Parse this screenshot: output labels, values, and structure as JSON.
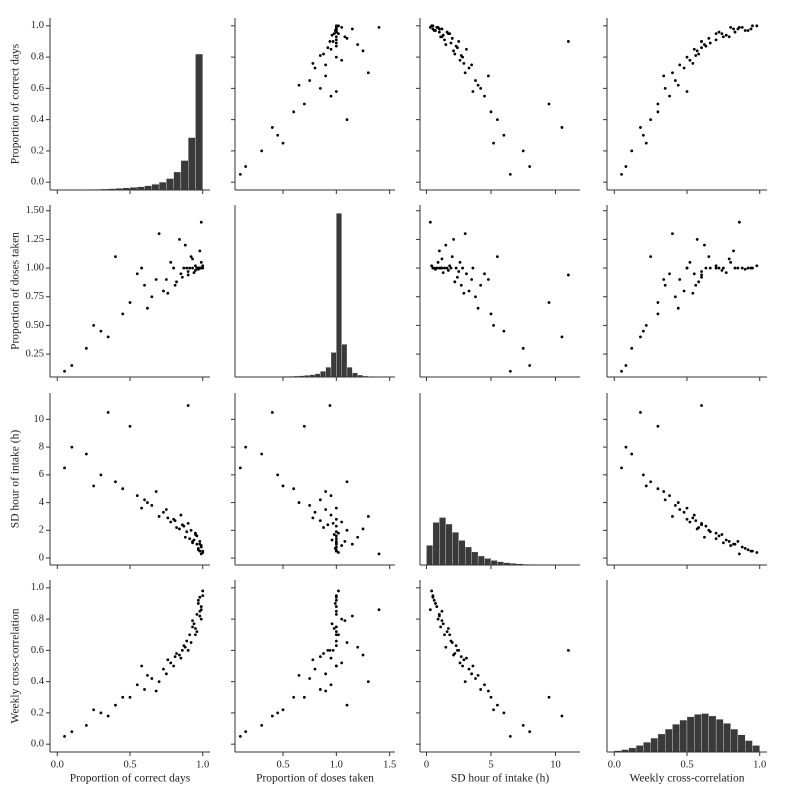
{
  "chart_data": {
    "type": "pairplot",
    "color": "#000000",
    "hist_color": "#3a3a3a",
    "hist_ylim": [
      0,
      1050
    ],
    "variables": [
      {
        "label": "Proportion of correct days",
        "lim": [
          -0.05,
          1.05
        ],
        "xticks": [
          {
            "value": 0,
            "label": "0.0"
          },
          {
            "value": 0.5,
            "label": "0.5"
          },
          {
            "value": 1,
            "label": "1.0"
          }
        ],
        "yticks": [
          {
            "value": 0,
            "label": "0.0"
          },
          0.2,
          0.4,
          0.6,
          0.8,
          {
            "value": 1,
            "label": "1.0"
          }
        ],
        "values": [
          0.98,
          0.95,
          0.9,
          1.0,
          0.85,
          0.99,
          0.92,
          0.75,
          0.6,
          0.88,
          0.97,
          0.45,
          0.8,
          0.93,
          0.3,
          0.7,
          1.0,
          0.96,
          0.55,
          0.82,
          0.2,
          0.89,
          0.65,
          0.98,
          0.4,
          0.94,
          0.78,
          0.1,
          0.99,
          0.86,
          0.5,
          0.91,
          0.73,
          0.97,
          0.35,
          0.84,
          0.95,
          0.62,
          0.99,
          0.05,
          0.87,
          0.76,
          0.93,
          0.58,
          0.98,
          0.25,
          0.81,
          0.96,
          0.68,
          0.9
        ],
        "hist": {
          "bins": [
            0,
            0.05,
            0.1,
            0.15,
            0.2,
            0.25,
            0.3,
            0.35,
            0.4,
            0.45,
            0.5,
            0.55,
            0.6,
            0.65,
            0.7,
            0.75,
            0.8,
            0.85,
            0.9,
            0.95,
            1.0
          ],
          "counts": [
            2,
            2,
            3,
            3,
            4,
            5,
            6,
            8,
            10,
            13,
            16,
            20,
            26,
            35,
            48,
            70,
            110,
            180,
            320,
            830
          ]
        }
      },
      {
        "label": "Proportion of doses taken",
        "lim": [
          0.05,
          1.55
        ],
        "xticks": [
          {
            "value": 0.5,
            "label": "0.5"
          },
          {
            "value": 1,
            "label": "1.0"
          },
          1.5
        ],
        "yticks": [
          0.25,
          {
            "value": 0.5,
            "label": "0.50"
          },
          0.75,
          {
            "value": 1,
            "label": "1.00"
          },
          1.25,
          {
            "value": 1.5,
            "label": "1.50"
          }
        ],
        "values": [
          1.0,
          1.02,
          0.97,
          1.0,
          0.95,
          1.05,
          1.1,
          0.9,
          0.85,
          1.2,
          0.99,
          0.6,
          1.0,
          1.0,
          0.45,
          1.3,
          1.02,
          1.0,
          0.95,
          0.88,
          0.3,
          1.0,
          0.75,
          1.15,
          1.1,
          0.96,
          1.05,
          0.15,
          1.0,
          0.92,
          0.7,
          1.0,
          0.8,
          1.0,
          0.4,
          1.25,
          0.98,
          0.65,
          1.4,
          0.1,
          1.0,
          0.78,
          1.08,
          1.0,
          1.0,
          0.5,
          0.85,
          1.0,
          0.9,
          0.94
        ],
        "hist": {
          "bins": [
            0.1,
            0.15,
            0.2,
            0.25,
            0.3,
            0.35,
            0.4,
            0.45,
            0.5,
            0.55,
            0.6,
            0.65,
            0.7,
            0.75,
            0.8,
            0.85,
            0.9,
            0.95,
            1.0,
            1.05,
            1.1,
            1.15,
            1.2,
            1.25,
            1.3,
            1.35,
            1.4,
            1.45,
            1.5
          ],
          "counts": [
            1,
            1,
            1,
            1,
            2,
            2,
            3,
            3,
            4,
            5,
            6,
            8,
            10,
            14,
            20,
            35,
            60,
            150,
            1000,
            200,
            60,
            25,
            12,
            6,
            4,
            2,
            1,
            1
          ]
        }
      },
      {
        "label": "SD hour of intake (h)",
        "lim": [
          -0.5,
          11.9
        ],
        "xticks": [
          0,
          5,
          10
        ],
        "yticks": [
          0,
          2,
          4,
          6,
          8,
          10
        ],
        "values": [
          1.2,
          1.8,
          2.5,
          0.5,
          3.1,
          0.9,
          2.0,
          3.5,
          4.2,
          1.5,
          0.7,
          5.0,
          2.8,
          1.1,
          6.0,
          3.0,
          0.4,
          1.6,
          4.5,
          2.2,
          7.5,
          1.9,
          3.8,
          1.0,
          5.5,
          1.3,
          2.6,
          8.0,
          0.8,
          2.4,
          9.5,
          1.4,
          3.3,
          0.6,
          10.5,
          2.1,
          1.7,
          4.0,
          0.3,
          6.5,
          2.3,
          2.9,
          1.2,
          3.6,
          0.5,
          5.2,
          2.7,
          1.0,
          4.8,
          11.0
        ],
        "hist": {
          "bins": [
            0,
            0.5,
            1,
            1.5,
            2,
            2.5,
            3,
            3.5,
            4,
            4.5,
            5,
            5.5,
            6,
            6.5,
            7,
            7.5,
            8,
            8.5,
            9,
            9.5,
            10,
            10.5,
            11,
            11.5
          ],
          "counts": [
            120,
            260,
            290,
            250,
            200,
            150,
            110,
            80,
            55,
            40,
            28,
            20,
            14,
            10,
            7,
            5,
            4,
            3,
            2,
            2,
            1,
            1,
            1
          ]
        }
      },
      {
        "label": "Weekly cross-correlation",
        "lim": [
          -0.05,
          1.05
        ],
        "xticks": [
          {
            "value": 0,
            "label": "0.0"
          },
          {
            "value": 0.5,
            "label": "0.5"
          },
          {
            "value": 1,
            "label": "1.0"
          }
        ],
        "yticks": [
          {
            "value": 0,
            "label": "0.0"
          },
          0.2,
          0.4,
          0.6,
          0.8,
          {
            "value": 1,
            "label": "1.0"
          }
        ],
        "values": [
          0.85,
          0.7,
          0.6,
          0.95,
          0.55,
          0.8,
          0.65,
          0.45,
          0.35,
          0.62,
          0.9,
          0.3,
          0.5,
          0.75,
          0.2,
          0.4,
          0.98,
          0.72,
          0.38,
          0.58,
          0.12,
          0.66,
          0.42,
          0.82,
          0.25,
          0.77,
          0.52,
          0.08,
          0.88,
          0.6,
          0.3,
          0.7,
          0.48,
          0.92,
          0.18,
          0.57,
          0.74,
          0.44,
          0.86,
          0.05,
          0.63,
          0.54,
          0.79,
          0.5,
          0.94,
          0.22,
          0.56,
          0.83,
          0.34,
          0.6
        ],
        "hist": {
          "bins": [
            0,
            0.05,
            0.1,
            0.15,
            0.2,
            0.25,
            0.3,
            0.35,
            0.4,
            0.45,
            0.5,
            0.55,
            0.6,
            0.65,
            0.7,
            0.75,
            0.8,
            0.85,
            0.9,
            0.95,
            1.0
          ],
          "counts": [
            8,
            15,
            25,
            40,
            60,
            85,
            110,
            140,
            170,
            195,
            215,
            230,
            235,
            220,
            200,
            175,
            140,
            105,
            70,
            40
          ]
        }
      }
    ]
  }
}
